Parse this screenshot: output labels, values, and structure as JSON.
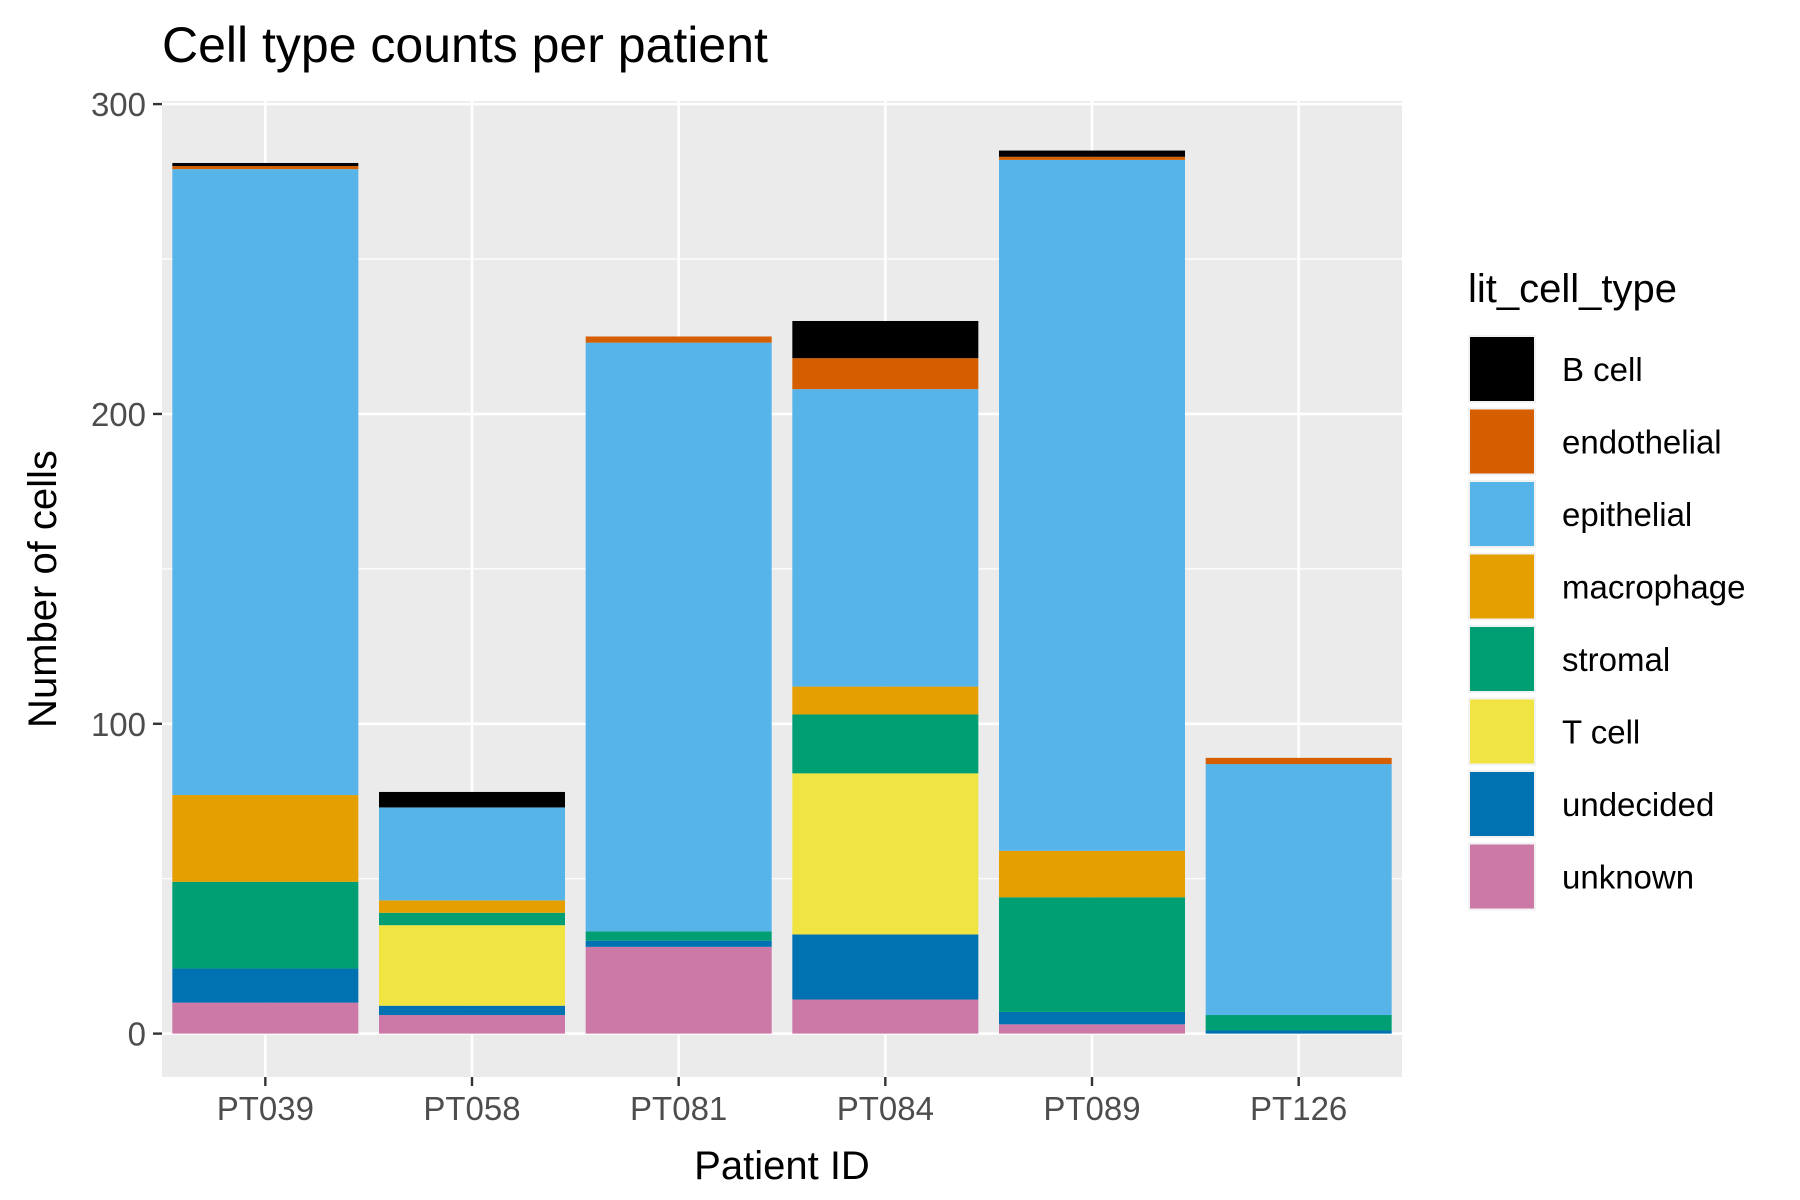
{
  "chart_data": {
    "type": "bar",
    "stacked": true,
    "title": "Cell type counts per patient",
    "xlabel": "Patient ID",
    "ylabel": "Number of cells",
    "ylim": [
      -14,
      301
    ],
    "yticks": [
      0,
      100,
      200,
      300
    ],
    "grid": true,
    "legend_position": "right",
    "legend_title": "lit_cell_type",
    "categories": [
      "PT039",
      "PT058",
      "PT081",
      "PT084",
      "PT089",
      "PT126"
    ],
    "series": [
      {
        "name": "unknown",
        "color": "#CC79A7",
        "values": [
          10,
          6,
          28,
          11,
          3,
          0
        ]
      },
      {
        "name": "undecided",
        "color": "#0072B2",
        "values": [
          11,
          3,
          2,
          21,
          4,
          1
        ]
      },
      {
        "name": "T cell",
        "color": "#F0E442",
        "values": [
          0,
          26,
          0,
          52,
          0,
          0
        ]
      },
      {
        "name": "stromal",
        "color": "#009E73",
        "values": [
          28,
          4,
          3,
          19,
          37,
          5
        ]
      },
      {
        "name": "macrophage",
        "color": "#E69F00",
        "values": [
          28,
          4,
          0,
          9,
          15,
          0
        ]
      },
      {
        "name": "epithelial",
        "color": "#56B4E9",
        "values": [
          202,
          30,
          190,
          96,
          223,
          81
        ]
      },
      {
        "name": "endothelial",
        "color": "#D55E00",
        "values": [
          1,
          0,
          2,
          10,
          1,
          2
        ]
      },
      {
        "name": "B cell",
        "color": "#000000",
        "values": [
          1,
          5,
          0,
          12,
          2,
          0
        ]
      }
    ],
    "legend_order": [
      "B cell",
      "endothelial",
      "epithelial",
      "macrophage",
      "stromal",
      "T cell",
      "undecided",
      "unknown"
    ]
  }
}
